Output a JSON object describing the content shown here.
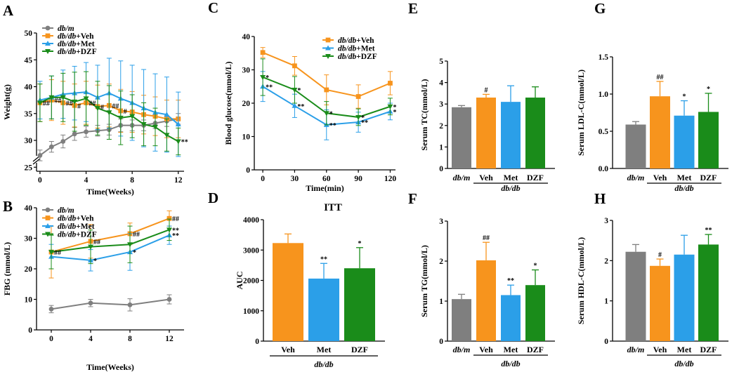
{
  "colors": {
    "dbm": "#7f7f7f",
    "veh": "#f7941d",
    "met": "#2b9fe8",
    "dzf": "#1a8c1a"
  },
  "chart_data": [
    {
      "panel": "A",
      "type": "line",
      "title": "",
      "xlabel": "Time(Weeks)",
      "ylabel": "Weight(g)",
      "ylim": [
        25,
        50
      ],
      "xlim": [
        -0.3,
        12.5
      ],
      "xticks": [
        "0",
        "4",
        "8",
        "12"
      ],
      "yticks": [
        "25",
        "30",
        "35",
        "40",
        "45",
        "50"
      ],
      "axis_break": true,
      "x": [
        0,
        1,
        2,
        3,
        4,
        5,
        6,
        7,
        8,
        9,
        10,
        11,
        12
      ],
      "series": [
        {
          "key": "dbm",
          "prefix": "db/m",
          "suffix": "",
          "values": [
            27.2,
            28.8,
            29.8,
            31.2,
            31.6,
            31.8,
            32.0,
            32.8,
            32.8,
            32.8,
            33.2,
            33.6,
            34.0
          ],
          "err": [
            1.0,
            1.0,
            1.2,
            1.2,
            1.0,
            1.0,
            1.0,
            1.2,
            1.0,
            1.0,
            1.0,
            1.0,
            1.0
          ]
        },
        {
          "key": "veh",
          "prefix": "db/db",
          "suffix": "+Veh",
          "values": [
            37.0,
            37.5,
            37.0,
            36.5,
            37.0,
            36.3,
            36.5,
            35.5,
            35.3,
            34.8,
            34.5,
            34.0,
            34.0
          ],
          "err": [
            3.5,
            3.8,
            4.0,
            4.0,
            4.0,
            4.0,
            4.0,
            4.0,
            3.8,
            3.6,
            3.6,
            3.5,
            3.5
          ]
        },
        {
          "key": "met",
          "prefix": "db/db",
          "suffix": "+Met",
          "values": [
            37.5,
            38.0,
            38.6,
            38.8,
            39.0,
            38.0,
            38.8,
            37.8,
            37.0,
            36.0,
            35.2,
            34.8,
            33.0
          ],
          "err": [
            3.5,
            4.0,
            4.5,
            5.0,
            5.5,
            6.0,
            6.5,
            7.0,
            7.0,
            7.2,
            7.2,
            7.0,
            6.0
          ]
        },
        {
          "key": "dzf",
          "prefix": "db/db",
          "suffix": "+DZF",
          "values": [
            37.0,
            38.0,
            38.0,
            37.2,
            37.8,
            36.0,
            35.2,
            34.2,
            34.5,
            33.0,
            32.5,
            31.0,
            29.8
          ],
          "err": [
            3.5,
            4.0,
            4.5,
            5.5,
            5.0,
            5.0,
            5.0,
            5.0,
            4.0,
            4.0,
            3.5,
            3.0,
            2.5
          ]
        }
      ],
      "annotations": [
        {
          "x": 0,
          "series": "veh",
          "text": "##"
        },
        {
          "x": 1,
          "series": "veh",
          "text": "##"
        },
        {
          "x": 2,
          "series": "veh",
          "text": "##"
        },
        {
          "x": 3,
          "series": "veh",
          "text": "#"
        },
        {
          "x": 4,
          "series": "veh",
          "text": "##"
        },
        {
          "x": 5,
          "series": "veh",
          "text": "#"
        },
        {
          "x": 6,
          "series": "veh",
          "text": "##"
        },
        {
          "x": 7,
          "series": "veh",
          "text": "#"
        },
        {
          "x": 12,
          "series": "dzf",
          "text": "**"
        }
      ],
      "legend": "top-left"
    },
    {
      "panel": "B",
      "type": "line",
      "title": "",
      "xlabel": "Time(Weeks)",
      "ylabel": "FBG (mmol/L)",
      "ylim": [
        0,
        40
      ],
      "xlim": [
        -1.5,
        13.5
      ],
      "xticks": [
        "0",
        "4",
        "8",
        "12"
      ],
      "yticks": [
        "0",
        "10",
        "20",
        "30",
        "40"
      ],
      "x": [
        0,
        4,
        8,
        12
      ],
      "series": [
        {
          "key": "dbm",
          "prefix": "db/m",
          "suffix": "",
          "values": [
            6.8,
            8.8,
            8.2,
            10.0
          ],
          "err": [
            1.2,
            1.2,
            2.0,
            1.5
          ]
        },
        {
          "key": "veh",
          "prefix": "db/db",
          "suffix": "+Veh",
          "values": [
            25.5,
            29.0,
            31.5,
            36.5
          ],
          "err": [
            8.5,
            5.5,
            3.5,
            2.5
          ]
        },
        {
          "key": "met",
          "prefix": "db/db",
          "suffix": "+Met",
          "values": [
            24.0,
            22.8,
            25.5,
            31.0
          ],
          "err": [
            4.0,
            3.5,
            6.0,
            3.0
          ]
        },
        {
          "key": "dzf",
          "prefix": "db/db",
          "suffix": "+DZF",
          "values": [
            25.5,
            27.2,
            28.0,
            32.8
          ],
          "err": [
            5.5,
            5.5,
            6.0,
            3.5
          ]
        }
      ],
      "annotations": [
        {
          "x": 0,
          "series": "veh",
          "text": "##"
        },
        {
          "x": 4,
          "series": "veh",
          "text": "##"
        },
        {
          "x": 8,
          "series": "veh",
          "text": "##"
        },
        {
          "x": 12,
          "series": "veh",
          "text": "##"
        },
        {
          "x": 4,
          "series": "met",
          "text": "*"
        },
        {
          "x": 8,
          "series": "met",
          "text": "*"
        },
        {
          "x": 12,
          "series": "dzf",
          "text": "**"
        },
        {
          "x": 12,
          "series": "met",
          "text": "**"
        }
      ],
      "legend": "top-left"
    },
    {
      "panel": "C",
      "type": "line",
      "title": "",
      "xlabel": "Time(min)",
      "ylabel": "Blood  glucose(mmol/L)",
      "ylim": [
        0,
        40
      ],
      "xlim": [
        -8,
        125
      ],
      "xticks": [
        "0",
        "30",
        "60",
        "90",
        "120"
      ],
      "yticks": [
        "0",
        "10",
        "20",
        "30",
        "40"
      ],
      "x": [
        0,
        30,
        60,
        90,
        120
      ],
      "series": [
        {
          "key": "veh",
          "prefix": "db/db",
          "suffix": "+Veh",
          "values": [
            35.2,
            31.2,
            24.0,
            22.0,
            26.0
          ],
          "err": [
            1.5,
            2.8,
            4.5,
            3.5,
            3.5
          ]
        },
        {
          "key": "met",
          "prefix": "db/db",
          "suffix": "+Met",
          "values": [
            25.0,
            19.2,
            13.5,
            14.3,
            17.5
          ],
          "err": [
            4.5,
            3.5,
            4.5,
            3.0,
            2.5
          ]
        },
        {
          "key": "dzf",
          "prefix": "db/db",
          "suffix": "+DZF",
          "values": [
            27.8,
            24.0,
            17.0,
            15.8,
            19.0
          ],
          "err": [
            5.5,
            4.0,
            3.5,
            2.5,
            2.5
          ]
        }
      ],
      "annotations": [
        {
          "x": 0,
          "series": "dzf",
          "text": "*"
        },
        {
          "x": 0,
          "series": "met",
          "text": "**"
        },
        {
          "x": 30,
          "series": "dzf",
          "text": "*"
        },
        {
          "x": 30,
          "series": "met",
          "text": "**"
        },
        {
          "x": 60,
          "series": "dzf",
          "text": "*"
        },
        {
          "x": 60,
          "series": "met",
          "text": "**"
        },
        {
          "x": 90,
          "series": "dzf",
          "text": "*"
        },
        {
          "x": 90,
          "series": "met",
          "text": "**"
        },
        {
          "x": 120,
          "series": "dzf",
          "text": "*"
        },
        {
          "x": 120,
          "series": "met",
          "text": "*"
        }
      ],
      "legend": "top-right"
    },
    {
      "panel": "D",
      "type": "bar",
      "title": "ITT",
      "xlabel": "",
      "ylabel": "AUC",
      "group": "db/db",
      "ylim": [
        0,
        4000
      ],
      "yticks": [
        "0",
        "1000",
        "2000",
        "3000",
        "4000"
      ],
      "categories": [
        "Veh",
        "Met",
        "DZF"
      ],
      "keys": [
        "veh",
        "met",
        "dzf"
      ],
      "values": [
        3230,
        2060,
        2400
      ],
      "err": [
        300,
        500,
        680
      ],
      "sig": [
        "",
        "**",
        "*"
      ]
    },
    {
      "panel": "E",
      "type": "bar",
      "title": "",
      "xlabel": "",
      "ylabel": "Serum TC(mmol/L)",
      "group": "db/db",
      "ylim": [
        0,
        5
      ],
      "yticks": [
        "0",
        "1",
        "2",
        "3",
        "4",
        "5"
      ],
      "categories": [
        "db/m",
        "Veh",
        "Met",
        "DZF"
      ],
      "keys": [
        "dbm",
        "veh",
        "met",
        "dzf"
      ],
      "values": [
        2.85,
        3.3,
        3.1,
        3.3
      ],
      "err": [
        0.08,
        0.15,
        0.75,
        0.5
      ],
      "sig": [
        "",
        "#",
        "",
        ""
      ]
    },
    {
      "panel": "F",
      "type": "bar",
      "title": "",
      "xlabel": "",
      "ylabel": "Serum TG(mmol/L)",
      "group": "db/db",
      "ylim": [
        0,
        3
      ],
      "yticks": [
        "0",
        "1",
        "2",
        "3"
      ],
      "categories": [
        "db/m",
        "Veh",
        "Met",
        "DZF"
      ],
      "keys": [
        "dbm",
        "veh",
        "met",
        "dzf"
      ],
      "values": [
        1.05,
        2.02,
        1.15,
        1.4
      ],
      "err": [
        0.12,
        0.45,
        0.25,
        0.38
      ],
      "sig": [
        "",
        "##",
        "**",
        "*"
      ]
    },
    {
      "panel": "G",
      "type": "bar",
      "title": "",
      "xlabel": "",
      "ylabel": "Serum LDL-C(mmol/L)",
      "group": "db/db",
      "ylim": [
        0,
        1.5
      ],
      "yticks": [
        "0.0",
        "0.5",
        "1.0",
        "1.5"
      ],
      "categories": [
        "db/m",
        "Veh",
        "Met",
        "DZF"
      ],
      "keys": [
        "dbm",
        "veh",
        "met",
        "dzf"
      ],
      "values": [
        0.59,
        0.97,
        0.71,
        0.76
      ],
      "err": [
        0.04,
        0.2,
        0.2,
        0.25
      ],
      "sig": [
        "",
        "##",
        "*",
        "*"
      ]
    },
    {
      "panel": "H",
      "type": "bar",
      "title": "",
      "xlabel": "",
      "ylabel": "Serum HDL-C(mmol/L)",
      "group": "db/db",
      "ylim": [
        0,
        3
      ],
      "yticks": [
        "0",
        "1",
        "2",
        "3"
      ],
      "categories": [
        "db/m",
        "Veh",
        "Met",
        "DZF"
      ],
      "keys": [
        "dbm",
        "veh",
        "met",
        "dzf"
      ],
      "values": [
        2.22,
        1.87,
        2.15,
        2.4
      ],
      "err": [
        0.18,
        0.17,
        0.48,
        0.25
      ],
      "sig": [
        "",
        "#",
        "",
        "**"
      ]
    }
  ]
}
